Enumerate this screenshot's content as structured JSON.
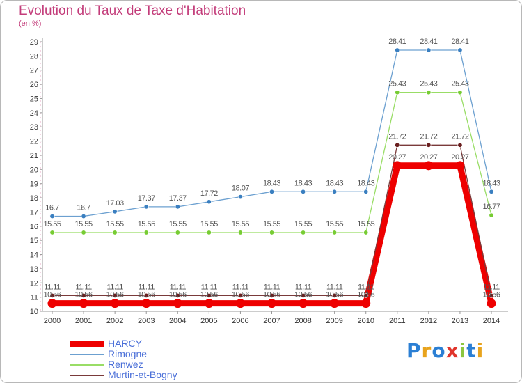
{
  "title": "Evolution du Taux de Taxe d'Habitation",
  "unit_label": "(en %)",
  "logo_text": "Proxiti",
  "logo_colors": [
    "#2b7fd4",
    "#e8a31c",
    "#2b7fd4",
    "#e0342b",
    "#8cc63f",
    "#2b7fd4",
    "#e8a31c"
  ],
  "colors": {
    "title": "#c33c7a",
    "axis": "#999999",
    "grid": "#e0e0e0",
    "labels": "#555555"
  },
  "chart_data": {
    "type": "line",
    "title": "Evolution du Taux de Taxe d'Habitation",
    "ylabel": "(en %)",
    "xlabel": "",
    "categories": [
      "2000",
      "2001",
      "2002",
      "2003",
      "2004",
      "2005",
      "2006",
      "2007",
      "2008",
      "2009",
      "2010",
      "2011",
      "2012",
      "2013",
      "2014"
    ],
    "ylim": [
      10,
      29
    ],
    "yticks": [
      10,
      11,
      12,
      13,
      14,
      15,
      16,
      17,
      18,
      19,
      20,
      21,
      22,
      23,
      24,
      25,
      26,
      27,
      28,
      29
    ],
    "grid": false,
    "legend_position": "bottom-left",
    "series": [
      {
        "name": "HARCY",
        "color": "#ee0000",
        "label_color": "#555555",
        "thick": true,
        "values": [
          10.56,
          10.56,
          10.56,
          10.56,
          10.56,
          10.56,
          10.56,
          10.56,
          10.56,
          10.56,
          10.56,
          20.27,
          20.27,
          20.27,
          10.56
        ],
        "labels": [
          "10.56",
          "10.56",
          "10.56",
          "10.56",
          "10.56",
          "10.56",
          "10.56",
          "10.56",
          "10.56",
          "10.56",
          "10.56",
          "20.27",
          "20.27",
          "20.27",
          "10.56"
        ]
      },
      {
        "name": "Rimogne",
        "color": "#6ca0d0",
        "marker": "#3a7fc0",
        "label_color": "#555555",
        "thick": false,
        "values": [
          16.7,
          16.7,
          17.03,
          17.37,
          17.37,
          17.72,
          18.07,
          18.43,
          18.43,
          18.43,
          18.43,
          28.41,
          28.41,
          28.41,
          18.43
        ],
        "labels": [
          "16.7",
          "16.7",
          "17.03",
          "17.37",
          "17.37",
          "17.72",
          "18.07",
          "18.43",
          "18.43",
          "18.43",
          "18.43",
          "28.41",
          "28.41",
          "28.41",
          "18.43"
        ]
      },
      {
        "name": "Renwez",
        "color": "#99dd66",
        "marker": "#77cc33",
        "label_color": "#555555",
        "thick": false,
        "values": [
          15.55,
          15.55,
          15.55,
          15.55,
          15.55,
          15.55,
          15.55,
          15.55,
          15.55,
          15.55,
          15.55,
          25.43,
          25.43,
          25.43,
          16.77
        ],
        "labels": [
          "15.55",
          "15.55",
          "15.55",
          "15.55",
          "15.55",
          "15.55",
          "15.55",
          "15.55",
          "15.55",
          "15.55",
          "15.55",
          "25.43",
          "25.43",
          "25.43",
          "16.77"
        ]
      },
      {
        "name": "Murtin-et-Bogny",
        "color": "#7a3a3a",
        "marker": "#6a1f1f",
        "label_color": "#555555",
        "thick": false,
        "values": [
          11.11,
          11.11,
          11.11,
          11.11,
          11.11,
          11.11,
          11.11,
          11.11,
          11.11,
          11.11,
          11.11,
          21.72,
          21.72,
          21.72,
          11.11
        ],
        "labels": [
          "11.11",
          "11.11",
          "11.11",
          "11.11",
          "11.11",
          "11.11",
          "11.11",
          "11.11",
          "11.11",
          "11.11",
          "11.11",
          "21.72",
          "21.72",
          "21.72",
          "11.11"
        ]
      }
    ],
    "legend": [
      {
        "name": "HARCY",
        "color": "#ee0000",
        "text_color": "#4a6fd8"
      },
      {
        "name": "Rimogne",
        "color": "#6ca0d0",
        "text_color": "#4a6fd8"
      },
      {
        "name": "Renwez",
        "color": "#99dd66",
        "text_color": "#4a6fd8"
      },
      {
        "name": "Murtin-et-Bogny",
        "color": "#7a3a3a",
        "text_color": "#4a6fd8"
      }
    ]
  }
}
